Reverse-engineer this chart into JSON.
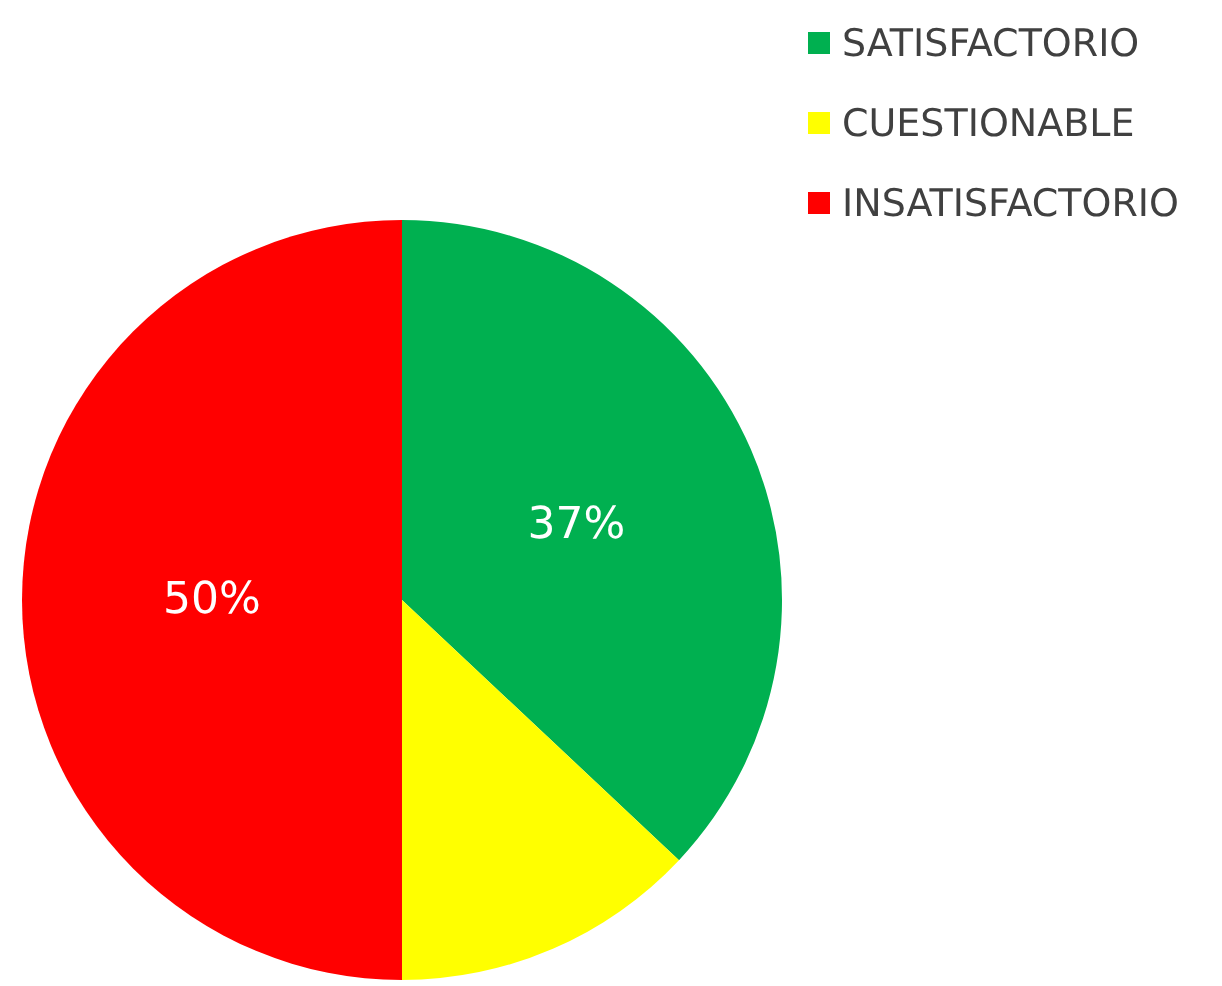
{
  "chart_data": {
    "type": "pie",
    "categories": [
      "SATISFACTORIO",
      "CUESTIONABLE",
      "INSATISFACTORIO"
    ],
    "values": [
      37,
      13,
      50
    ],
    "colors": [
      "#00b050",
      "#ffff00",
      "#ff0000"
    ],
    "value_labels": [
      "37%",
      null,
      "50%"
    ],
    "legend": "top right"
  }
}
